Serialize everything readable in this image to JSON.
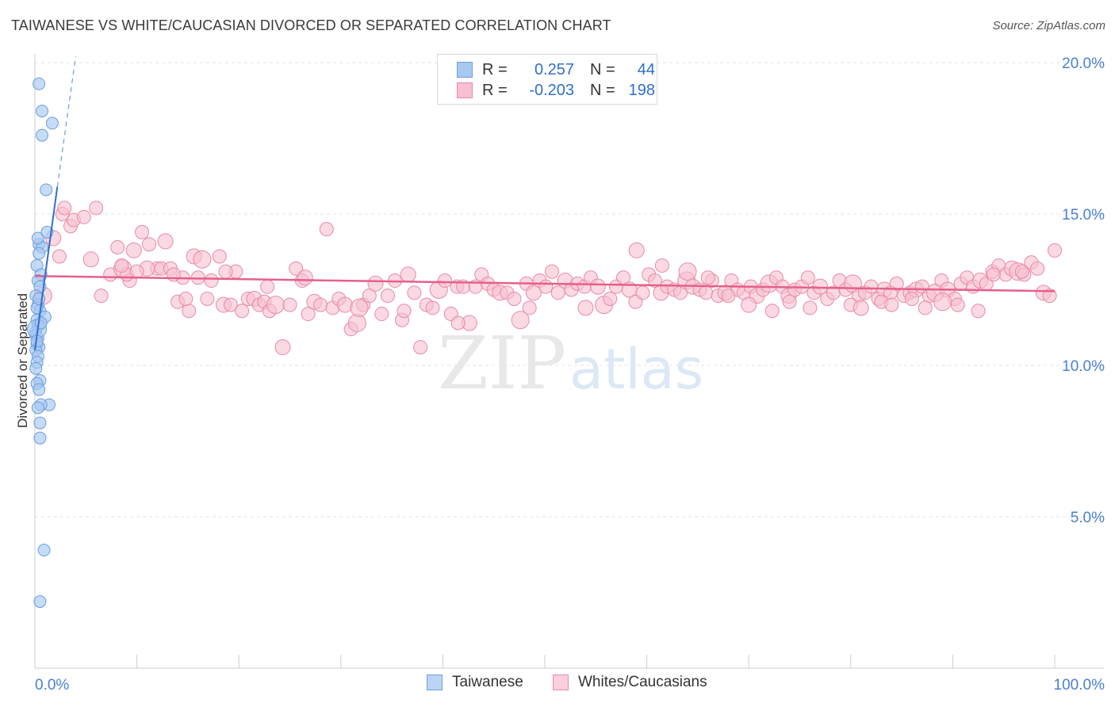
{
  "title": "TAIWANESE VS WHITE/CAUCASIAN DIVORCED OR SEPARATED CORRELATION CHART",
  "source": "Source: ZipAtlas.com",
  "watermark": {
    "zip": "ZIP",
    "atlas": "atlas"
  },
  "legend": {
    "rows": [
      {
        "r_label": "R =",
        "r_value": "0.257",
        "n_label": "N =",
        "n_value": "44",
        "color": "#a8c8f0",
        "border": "#6a9ee0"
      },
      {
        "r_label": "R =",
        "r_value": "-0.203",
        "n_label": "N =",
        "n_value": "198",
        "color": "#f7bfd0",
        "border": "#e88aa6"
      }
    ]
  },
  "bottom_legend": [
    {
      "label": "Taiwanese",
      "color": "#bcd4f4",
      "border": "#6a9ee0"
    },
    {
      "label": "Whites/Caucasians",
      "color": "#fbd0dc",
      "border": "#e88aa6"
    }
  ],
  "chart_data": {
    "type": "scatter",
    "title": "TAIWANESE VS WHITE/CAUCASIAN DIVORCED OR SEPARATED CORRELATION CHART",
    "xlabel": "",
    "ylabel": "Divorced or Separated",
    "xlim": [
      0,
      100
    ],
    "ylim": [
      0,
      20
    ],
    "x_tick_labels": {
      "min": "0.0%",
      "max": "100.0%"
    },
    "y_ticks": [
      {
        "value": 5,
        "label": "5.0%"
      },
      {
        "value": 10,
        "label": "10.0%"
      },
      {
        "value": 15,
        "label": "15.0%"
      },
      {
        "value": 20,
        "label": "20.0%"
      }
    ],
    "grid": true,
    "colors": {
      "taiwanese": "#6a9ee0",
      "taiwanese_fill": "#a8c8f0",
      "white": "#e88aa6",
      "white_fill": "#f7bfd0",
      "white_line": "#e5608a",
      "taiwanese_line": "#2f6fd0"
    },
    "series": [
      {
        "name": "Taiwanese",
        "trend": {
          "x0": 0.0,
          "y0": 10.5,
          "x1": 2.2,
          "y1": 15.9,
          "dashed_to_x": 4.0,
          "dashed_to_y": 20.2
        },
        "points": [
          [
            0.4,
            19.3
          ],
          [
            0.7,
            18.4
          ],
          [
            1.7,
            18.0
          ],
          [
            0.7,
            17.6
          ],
          [
            1.1,
            15.8
          ],
          [
            0.4,
            14.0
          ],
          [
            0.7,
            13.9
          ],
          [
            0.4,
            13.7
          ],
          [
            0.2,
            13.3
          ],
          [
            0.6,
            13.0
          ],
          [
            0.3,
            12.8
          ],
          [
            0.5,
            12.6
          ],
          [
            0.1,
            12.3
          ],
          [
            0.3,
            12.0
          ],
          [
            0.5,
            11.8
          ],
          [
            1.0,
            11.6
          ],
          [
            0.2,
            11.5
          ],
          [
            0.3,
            11.3
          ],
          [
            0.1,
            11.1
          ],
          [
            0.1,
            11.0
          ],
          [
            0.3,
            10.9
          ],
          [
            0.2,
            10.7
          ],
          [
            0.4,
            10.6
          ],
          [
            0.1,
            10.5
          ],
          [
            0.3,
            10.3
          ],
          [
            0.2,
            10.1
          ],
          [
            0.1,
            9.9
          ],
          [
            0.5,
            9.5
          ],
          [
            0.2,
            9.4
          ],
          [
            0.4,
            9.2
          ],
          [
            1.4,
            8.7
          ],
          [
            0.6,
            8.7
          ],
          [
            0.3,
            8.6
          ],
          [
            0.5,
            8.1
          ],
          [
            0.5,
            7.6
          ],
          [
            0.9,
            3.9
          ],
          [
            0.5,
            2.2
          ],
          [
            0.2,
            11.2
          ],
          [
            0.3,
            14.2
          ],
          [
            1.2,
            14.4
          ],
          [
            0.2,
            11.9
          ],
          [
            0.4,
            12.2
          ],
          [
            0.2,
            10.8
          ],
          [
            0.6,
            11.4
          ]
        ]
      },
      {
        "name": "Whites/Caucasians",
        "trend": {
          "x0": 0.0,
          "y0": 12.95,
          "x1": 100.0,
          "y1": 12.45
        },
        "points": [
          [
            0.8,
            12.3
          ],
          [
            2.4,
            13.6
          ],
          [
            3.5,
            14.6
          ],
          [
            3.8,
            14.8
          ],
          [
            4.8,
            14.9
          ],
          [
            1.8,
            14.2
          ],
          [
            2.7,
            15.0
          ],
          [
            2.9,
            15.2
          ],
          [
            6.0,
            15.2
          ],
          [
            7.4,
            13.0
          ],
          [
            5.5,
            13.5
          ],
          [
            6.5,
            12.3
          ],
          [
            8.1,
            13.9
          ],
          [
            8.6,
            13.2
          ],
          [
            9.3,
            12.8
          ],
          [
            9.7,
            13.8
          ],
          [
            10.5,
            14.4
          ],
          [
            11.2,
            14.0
          ],
          [
            12.0,
            13.2
          ],
          [
            12.4,
            13.2
          ],
          [
            12.8,
            14.1
          ],
          [
            13.3,
            13.2
          ],
          [
            14.0,
            12.1
          ],
          [
            14.5,
            12.9
          ],
          [
            15.1,
            11.8
          ],
          [
            15.6,
            13.6
          ],
          [
            16.4,
            13.5
          ],
          [
            16.9,
            12.2
          ],
          [
            17.3,
            12.8
          ],
          [
            18.1,
            13.6
          ],
          [
            18.5,
            12.0
          ],
          [
            19.2,
            12.0
          ],
          [
            19.7,
            13.1
          ],
          [
            20.3,
            11.8
          ],
          [
            20.9,
            12.2
          ],
          [
            21.5,
            12.2
          ],
          [
            22.0,
            12.0
          ],
          [
            22.5,
            12.1
          ],
          [
            23.0,
            11.8
          ],
          [
            23.6,
            12.0
          ],
          [
            24.3,
            10.6
          ],
          [
            25.0,
            12.0
          ],
          [
            25.6,
            13.2
          ],
          [
            26.2,
            12.8
          ],
          [
            26.8,
            11.7
          ],
          [
            27.4,
            12.1
          ],
          [
            28.0,
            12.0
          ],
          [
            28.6,
            14.5
          ],
          [
            29.2,
            11.9
          ],
          [
            29.8,
            12.2
          ],
          [
            30.4,
            12.0
          ],
          [
            31.0,
            11.2
          ],
          [
            31.6,
            11.4
          ],
          [
            32.2,
            12.0
          ],
          [
            32.8,
            12.3
          ],
          [
            33.4,
            12.7
          ],
          [
            34.0,
            11.7
          ],
          [
            34.6,
            12.3
          ],
          [
            35.3,
            12.8
          ],
          [
            36.0,
            11.5
          ],
          [
            36.6,
            13.0
          ],
          [
            37.2,
            12.4
          ],
          [
            37.8,
            10.6
          ],
          [
            38.4,
            12.0
          ],
          [
            39.0,
            11.9
          ],
          [
            39.6,
            12.5
          ],
          [
            40.2,
            12.8
          ],
          [
            40.8,
            11.7
          ],
          [
            41.4,
            12.6
          ],
          [
            42.0,
            12.6
          ],
          [
            42.6,
            11.4
          ],
          [
            43.2,
            12.6
          ],
          [
            43.8,
            13.0
          ],
          [
            44.4,
            12.7
          ],
          [
            45.0,
            12.5
          ],
          [
            45.6,
            12.4
          ],
          [
            46.3,
            12.4
          ],
          [
            47.0,
            12.2
          ],
          [
            47.6,
            11.5
          ],
          [
            48.2,
            12.7
          ],
          [
            48.9,
            12.4
          ],
          [
            49.5,
            12.8
          ],
          [
            50.1,
            12.6
          ],
          [
            50.7,
            13.1
          ],
          [
            51.3,
            12.4
          ],
          [
            52.0,
            12.8
          ],
          [
            52.6,
            12.5
          ],
          [
            53.2,
            12.7
          ],
          [
            53.9,
            12.6
          ],
          [
            54.5,
            12.9
          ],
          [
            55.2,
            12.6
          ],
          [
            55.8,
            12.0
          ],
          [
            56.4,
            12.2
          ],
          [
            57.0,
            12.6
          ],
          [
            57.7,
            12.9
          ],
          [
            58.3,
            12.5
          ],
          [
            58.9,
            12.1
          ],
          [
            59.6,
            12.4
          ],
          [
            60.2,
            13.0
          ],
          [
            60.8,
            12.8
          ],
          [
            61.4,
            12.4
          ],
          [
            62.0,
            12.6
          ],
          [
            62.7,
            12.5
          ],
          [
            63.3,
            12.4
          ],
          [
            63.9,
            12.8
          ],
          [
            64.5,
            12.6
          ],
          [
            65.2,
            12.5
          ],
          [
            65.8,
            12.4
          ],
          [
            66.4,
            12.8
          ],
          [
            67.0,
            12.3
          ],
          [
            67.7,
            12.4
          ],
          [
            68.3,
            12.8
          ],
          [
            68.9,
            12.5
          ],
          [
            69.5,
            12.4
          ],
          [
            70.2,
            12.6
          ],
          [
            70.8,
            12.3
          ],
          [
            71.4,
            12.5
          ],
          [
            72.0,
            12.7
          ],
          [
            72.7,
            12.9
          ],
          [
            73.3,
            12.6
          ],
          [
            73.9,
            12.3
          ],
          [
            74.5,
            12.5
          ],
          [
            75.2,
            12.6
          ],
          [
            75.8,
            12.9
          ],
          [
            76.4,
            12.4
          ],
          [
            77.0,
            12.6
          ],
          [
            77.7,
            12.2
          ],
          [
            78.3,
            12.4
          ],
          [
            78.9,
            12.8
          ],
          [
            79.5,
            12.5
          ],
          [
            80.2,
            12.7
          ],
          [
            80.8,
            12.3
          ],
          [
            81.4,
            12.4
          ],
          [
            82.0,
            12.6
          ],
          [
            82.7,
            12.2
          ],
          [
            83.3,
            12.5
          ],
          [
            83.9,
            12.4
          ],
          [
            84.5,
            12.7
          ],
          [
            85.2,
            12.3
          ],
          [
            85.8,
            12.4
          ],
          [
            86.4,
            12.5
          ],
          [
            87.0,
            12.6
          ],
          [
            87.7,
            12.3
          ],
          [
            88.3,
            12.4
          ],
          [
            88.9,
            12.8
          ],
          [
            89.5,
            12.5
          ],
          [
            90.2,
            12.2
          ],
          [
            90.8,
            12.7
          ],
          [
            91.4,
            12.9
          ],
          [
            92.0,
            12.6
          ],
          [
            92.7,
            12.8
          ],
          [
            93.3,
            12.7
          ],
          [
            93.9,
            13.1
          ],
          [
            94.5,
            13.3
          ],
          [
            95.2,
            13.0
          ],
          [
            95.8,
            13.2
          ],
          [
            96.4,
            13.1
          ],
          [
            97.0,
            13.0
          ],
          [
            97.7,
            13.4
          ],
          [
            98.3,
            13.2
          ],
          [
            98.9,
            12.4
          ],
          [
            99.5,
            12.3
          ],
          [
            100.0,
            13.8
          ],
          [
            94.0,
            13.0
          ],
          [
            96.8,
            13.1
          ],
          [
            54.0,
            11.9
          ],
          [
            48.5,
            11.9
          ],
          [
            41.5,
            11.4
          ],
          [
            36.2,
            11.8
          ],
          [
            31.8,
            11.9
          ],
          [
            26.5,
            12.9
          ],
          [
            22.8,
            12.6
          ],
          [
            18.7,
            13.1
          ],
          [
            16.0,
            12.9
          ],
          [
            13.6,
            13.0
          ],
          [
            11.0,
            13.2
          ],
          [
            9.0,
            13.0
          ],
          [
            8.5,
            13.3
          ],
          [
            10.0,
            13.1
          ],
          [
            14.8,
            12.2
          ],
          [
            59.0,
            13.8
          ],
          [
            61.5,
            13.3
          ],
          [
            64.0,
            13.1
          ],
          [
            66.0,
            12.9
          ],
          [
            68.0,
            12.3
          ],
          [
            70.0,
            12.0
          ],
          [
            72.3,
            11.8
          ],
          [
            74.0,
            12.1
          ],
          [
            76.0,
            11.9
          ],
          [
            80.0,
            12.0
          ],
          [
            81.0,
            11.9
          ],
          [
            83.0,
            12.1
          ],
          [
            84.0,
            12.0
          ],
          [
            86.0,
            12.2
          ],
          [
            87.3,
            11.9
          ],
          [
            89.0,
            12.1
          ],
          [
            90.5,
            12.0
          ],
          [
            92.5,
            11.8
          ]
        ]
      }
    ]
  }
}
